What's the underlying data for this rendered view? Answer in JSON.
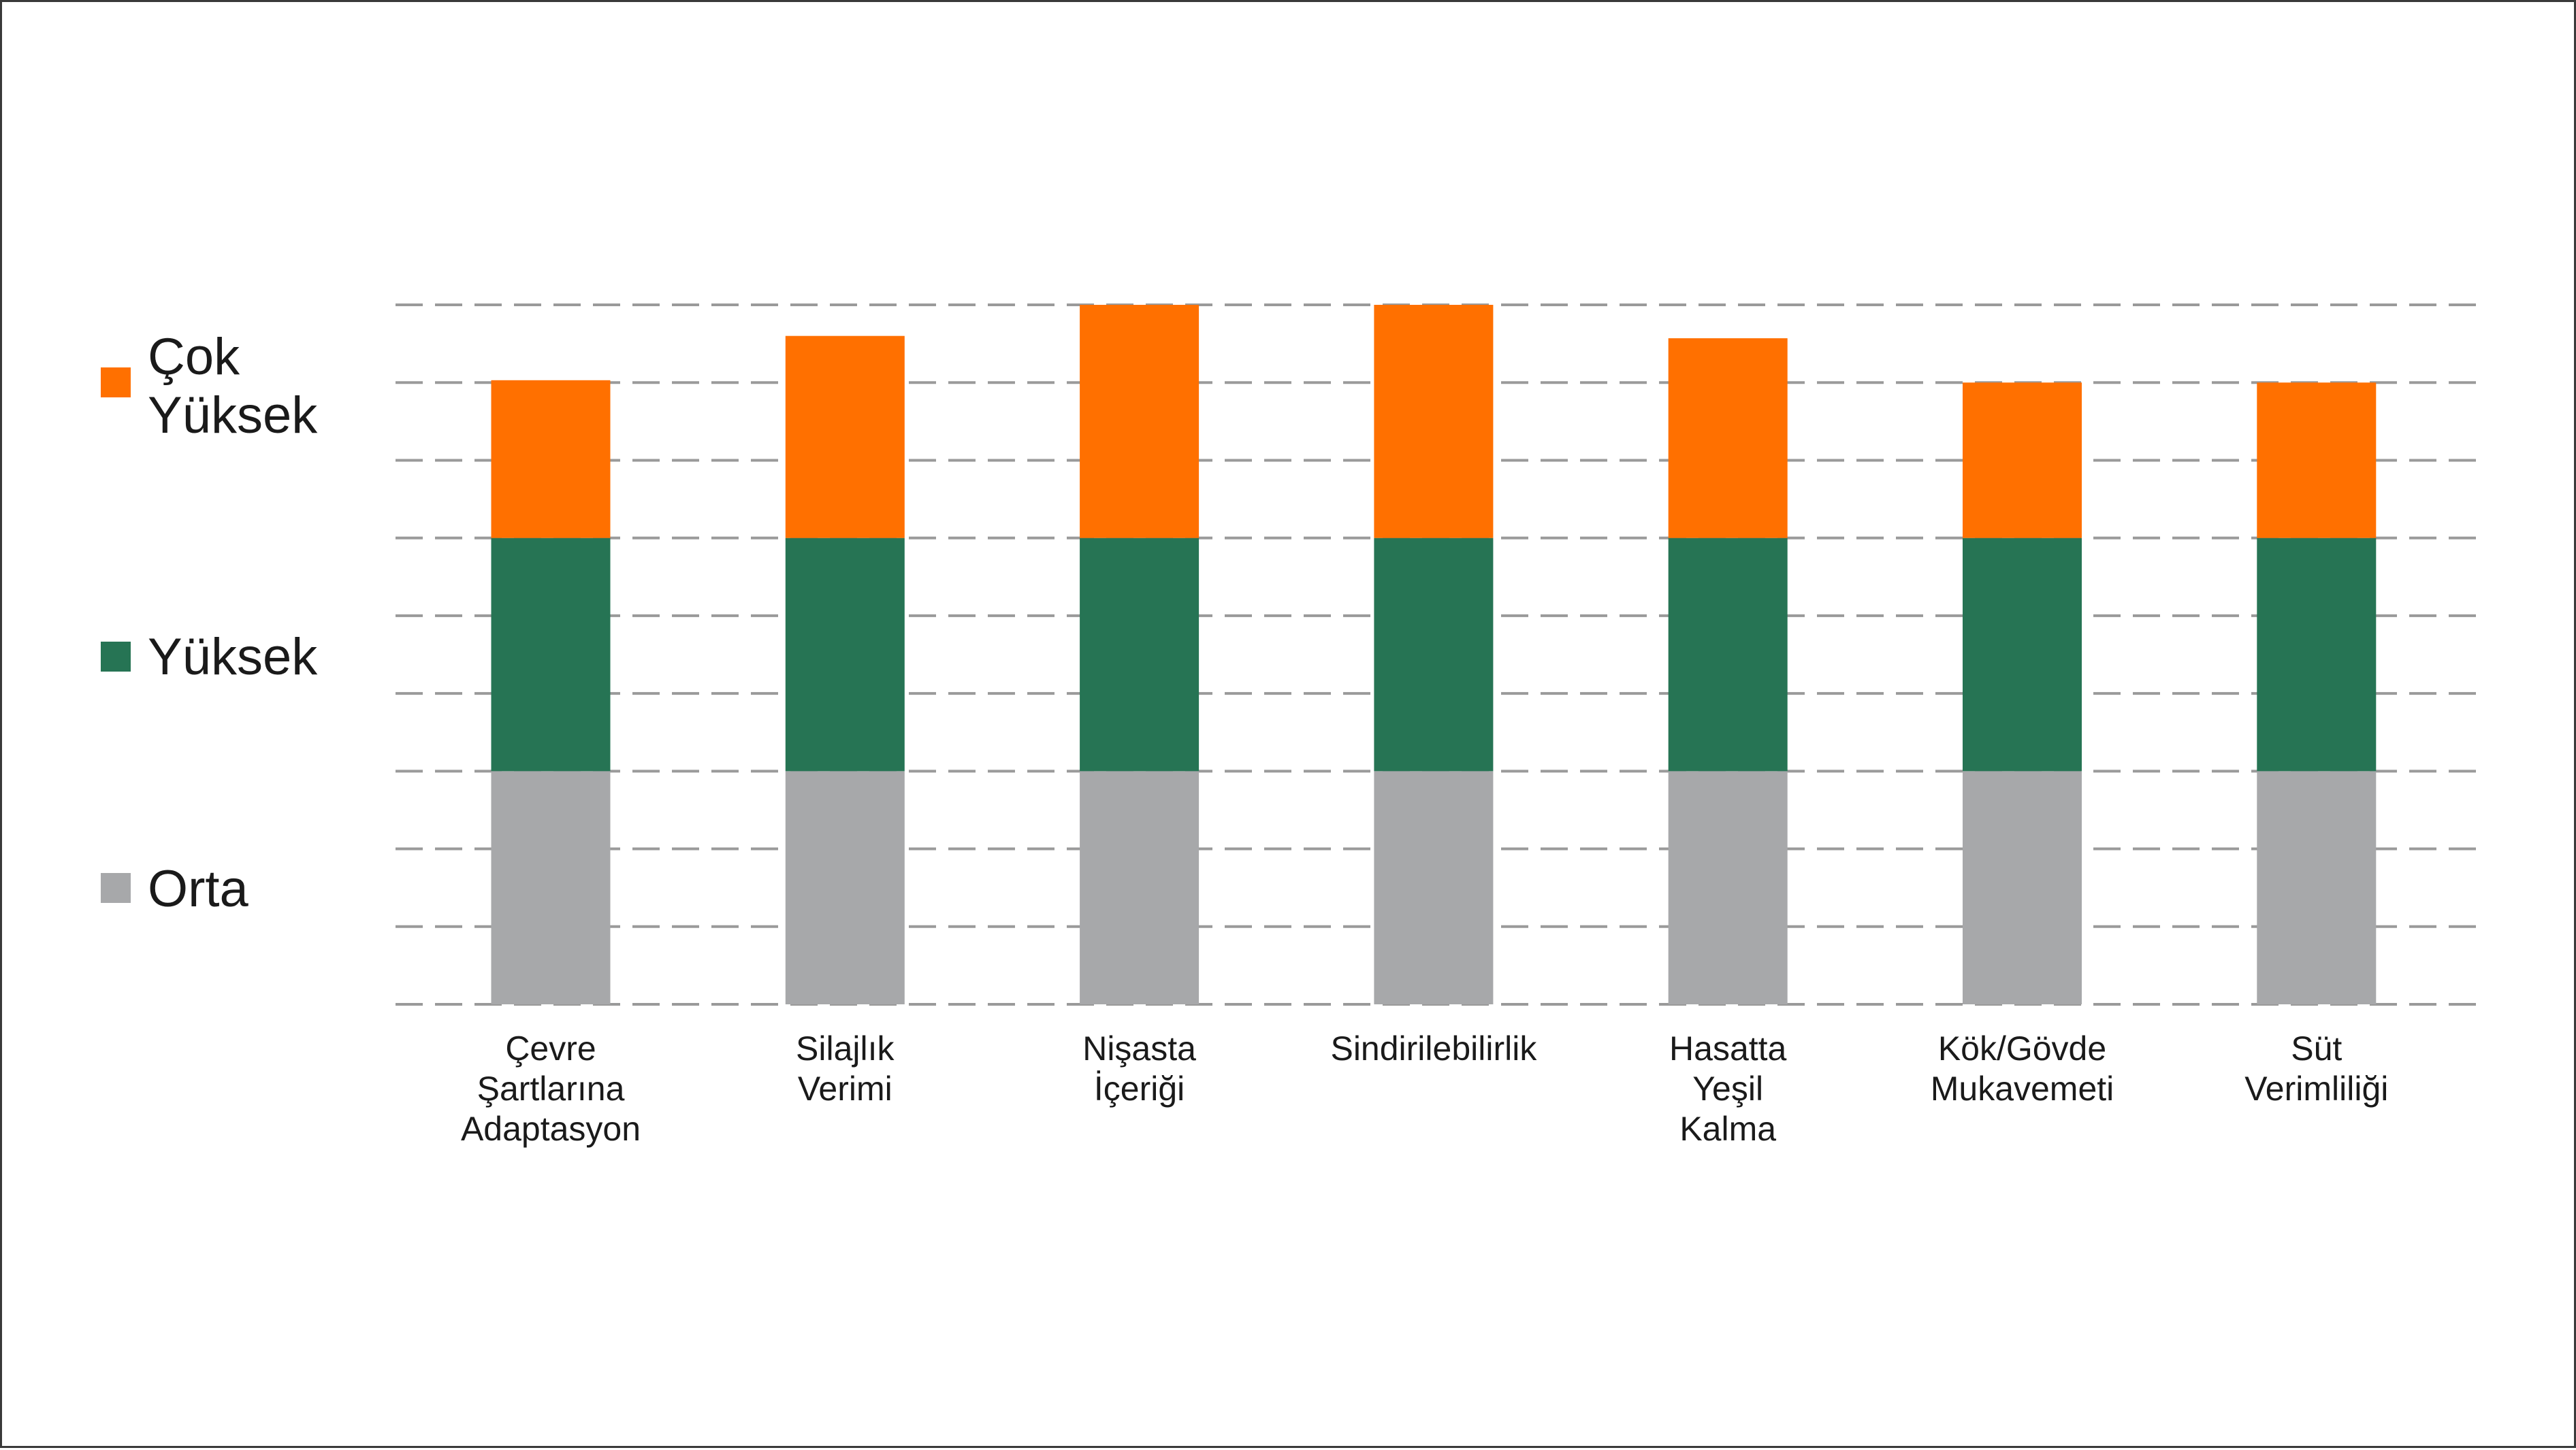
{
  "chart_data": {
    "type": "bar",
    "stacked": true,
    "categories": [
      [
        "Çevre",
        "Şartlarına",
        "Adaptasyon"
      ],
      [
        "Silajlık",
        "Verimi"
      ],
      [
        "Nişasta",
        "İçeriği"
      ],
      [
        "Sindirilebilirlik"
      ],
      [
        "Hasatta",
        "Yeşil",
        "Kalma"
      ],
      [
        "Kök/Gövde",
        "Mukavemeti"
      ],
      [
        "Süt",
        "Verimliliği"
      ]
    ],
    "series": [
      {
        "name": "Orta",
        "color": "#a7a8aa",
        "values": [
          3,
          3,
          3,
          3,
          3,
          3,
          3
        ]
      },
      {
        "name": "Yüksek",
        "color": "#267454",
        "values": [
          3,
          3,
          3,
          3,
          3,
          3,
          3
        ]
      },
      {
        "name": "Çok Yüksek",
        "color": "#ff7000",
        "values": [
          2.03,
          2.6,
          3,
          3,
          2.57,
          2,
          2
        ]
      }
    ],
    "legend": {
      "placement": "left",
      "entries": [
        {
          "label_lines": [
            "Çok",
            "Yüksek"
          ],
          "color": "#ff7000"
        },
        {
          "label_lines": [
            "Yüksek"
          ],
          "color": "#267454"
        },
        {
          "label_lines": [
            "Orta"
          ],
          "color": "#a7a8aa"
        }
      ]
    },
    "ylim": [
      0,
      9
    ],
    "grid": true,
    "grid_style": "dashed",
    "title": "",
    "xlabel": "",
    "ylabel": ""
  }
}
